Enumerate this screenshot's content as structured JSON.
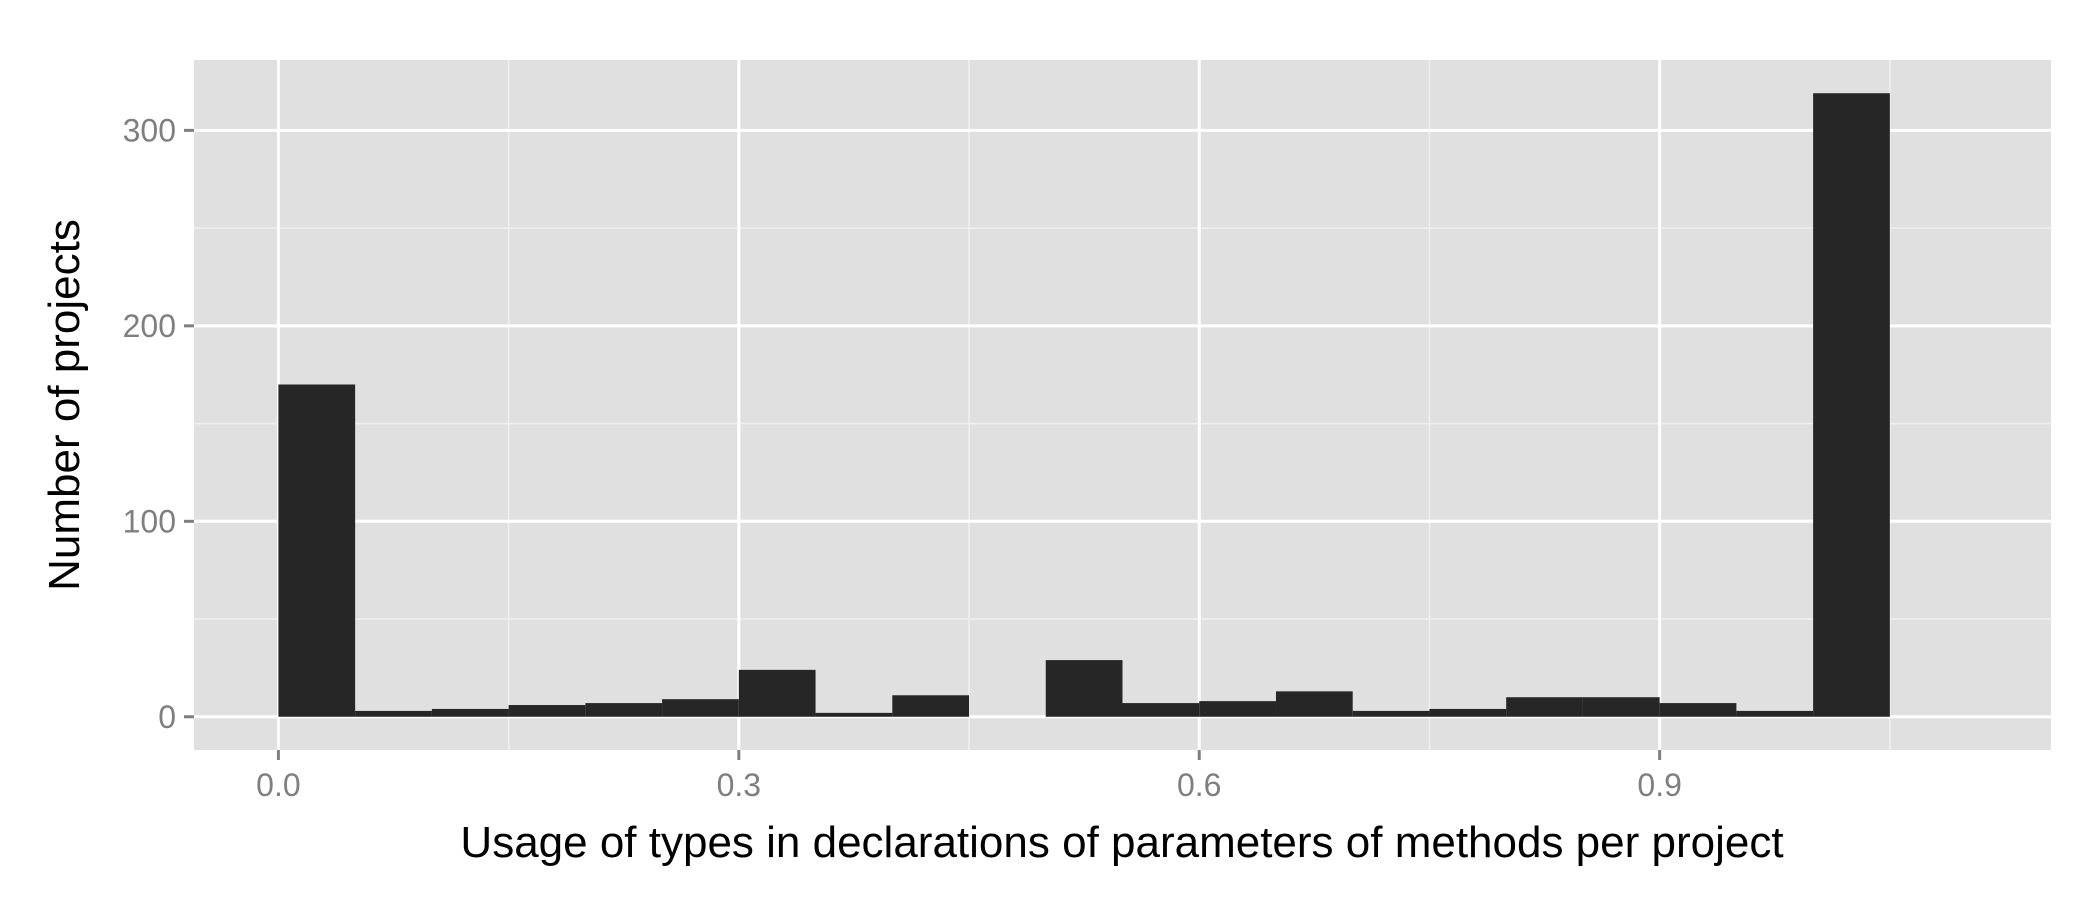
{
  "chart_data": {
    "type": "bar",
    "subtype": "histogram",
    "xlabel": "Usage of types in declarations of parameters of methods per project",
    "ylabel": "Number of projects",
    "xlim": [
      -0.055,
      1.155
    ],
    "ylim": [
      -17,
      336
    ],
    "x_ticks": [
      {
        "value": 0.0,
        "label": "0.0"
      },
      {
        "value": 0.3,
        "label": "0.3"
      },
      {
        "value": 0.6,
        "label": "0.6"
      },
      {
        "value": 0.9,
        "label": "0.9"
      }
    ],
    "x_minor_ticks": [
      0.15,
      0.45,
      0.75,
      1.05
    ],
    "y_ticks": [
      {
        "value": 0,
        "label": "0"
      },
      {
        "value": 100,
        "label": "100"
      },
      {
        "value": 200,
        "label": "200"
      },
      {
        "value": 300,
        "label": "300"
      }
    ],
    "y_minor_ticks": [
      50,
      150,
      250
    ],
    "bin_width": 0.05,
    "bins": [
      {
        "x0": 0.0,
        "count": 170
      },
      {
        "x0": 0.05,
        "count": 3
      },
      {
        "x0": 0.1,
        "count": 4
      },
      {
        "x0": 0.15,
        "count": 6
      },
      {
        "x0": 0.2,
        "count": 7
      },
      {
        "x0": 0.25,
        "count": 9
      },
      {
        "x0": 0.3,
        "count": 24
      },
      {
        "x0": 0.35,
        "count": 2
      },
      {
        "x0": 0.4,
        "count": 11
      },
      {
        "x0": 0.45,
        "count": 0
      },
      {
        "x0": 0.5,
        "count": 29
      },
      {
        "x0": 0.55,
        "count": 7
      },
      {
        "x0": 0.6,
        "count": 8
      },
      {
        "x0": 0.65,
        "count": 13
      },
      {
        "x0": 0.7,
        "count": 3
      },
      {
        "x0": 0.75,
        "count": 4
      },
      {
        "x0": 0.8,
        "count": 10
      },
      {
        "x0": 0.85,
        "count": 10
      },
      {
        "x0": 0.9,
        "count": 7
      },
      {
        "x0": 0.95,
        "count": 3
      },
      {
        "x0": 1.0,
        "count": 319
      }
    ],
    "grid": true,
    "colors": {
      "panel_background": "#e0e0e0",
      "grid_major": "#ffffff",
      "grid_minor": "#f0f0f0",
      "bar_fill": "#262626",
      "tick_label": "#7f7f7f",
      "tick_mark": "#7f7f7f",
      "axis_title": "#000000"
    }
  }
}
